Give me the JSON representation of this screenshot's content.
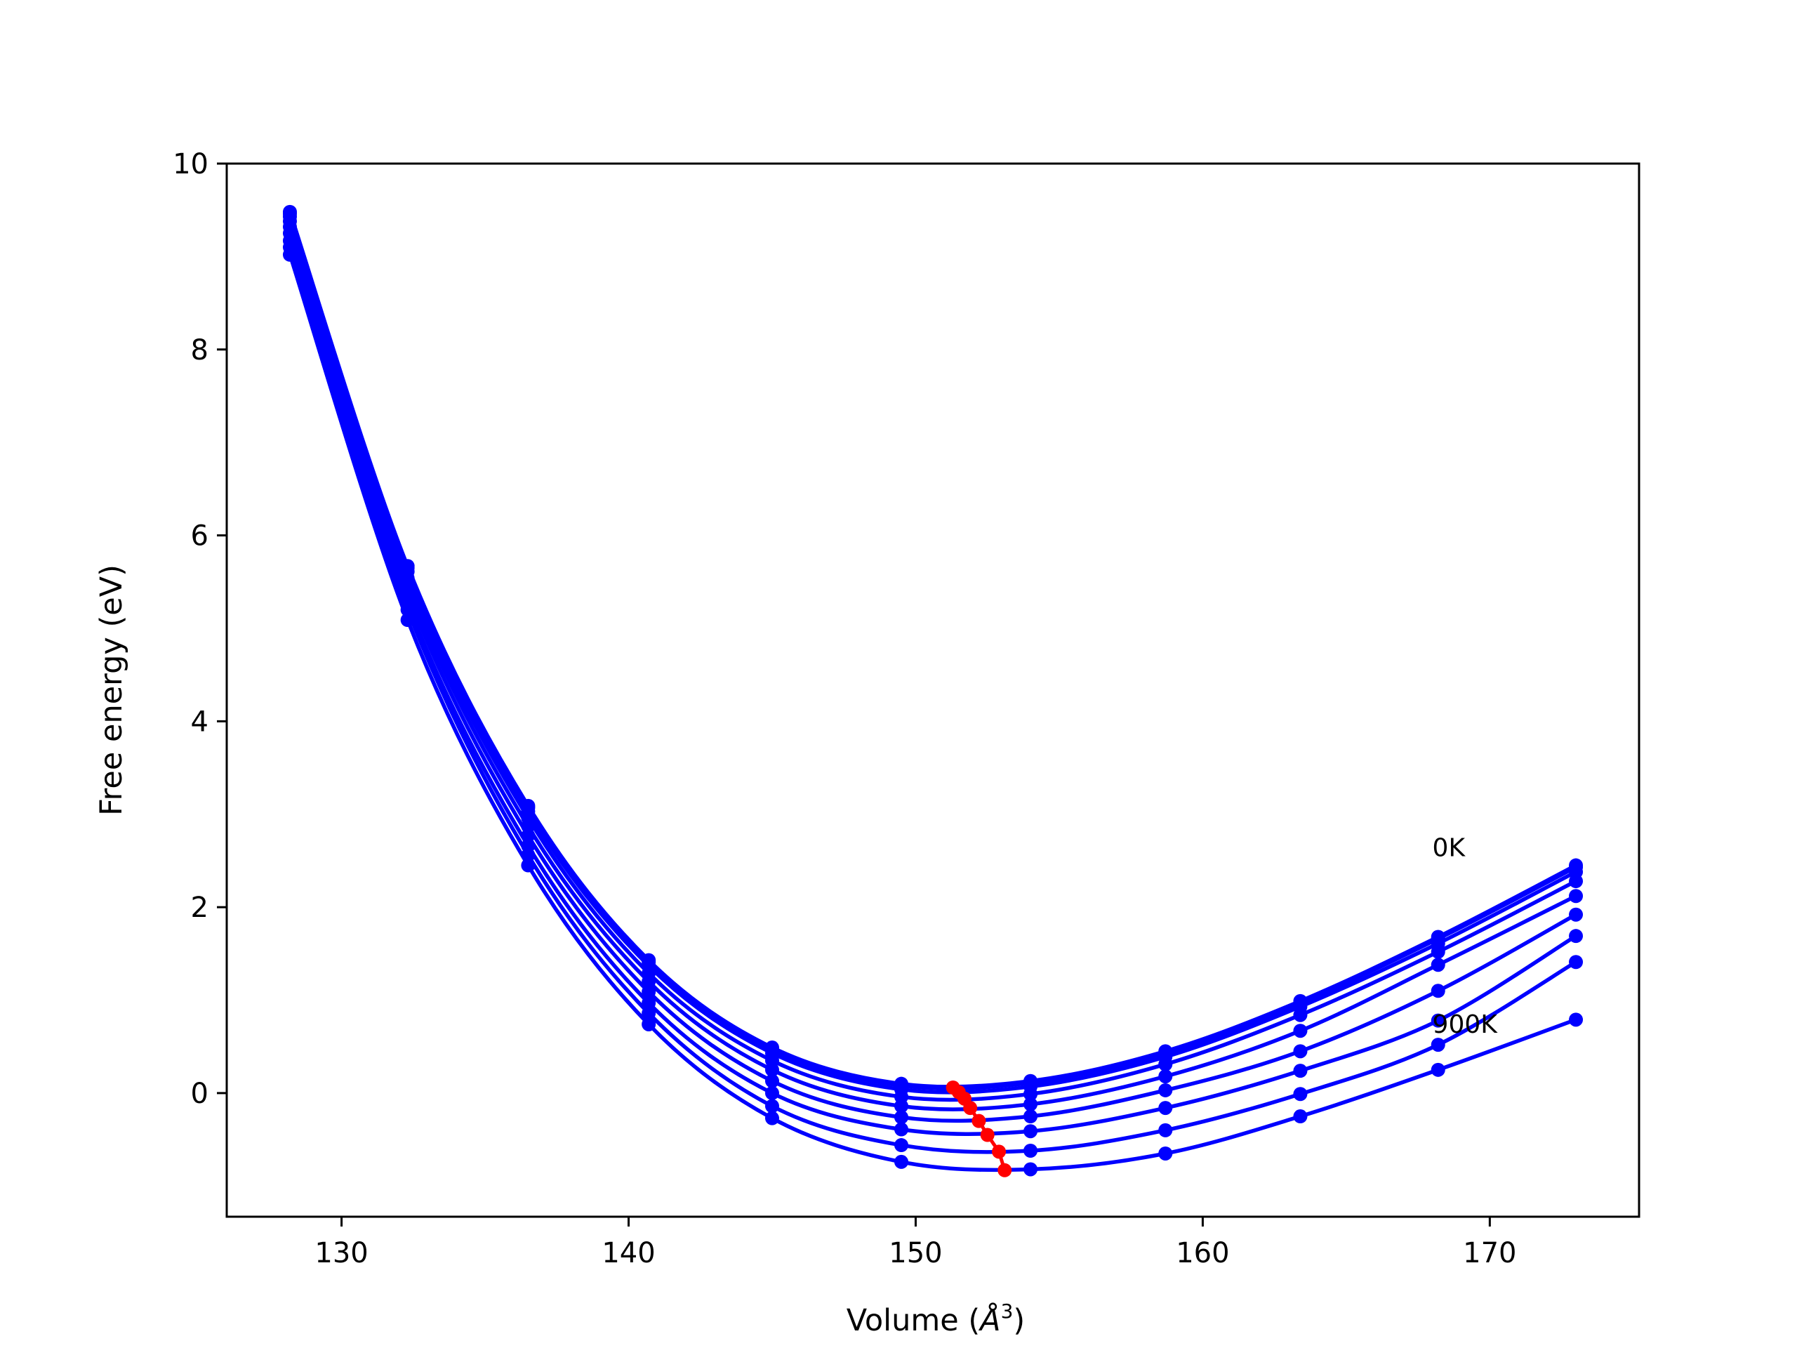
{
  "chart_data": {
    "type": "line",
    "xlabel": "Volume (",
    "xlabel_sym": "Å",
    "xlabel_exp": "3",
    "xlabel_end": ")",
    "ylabel": "Free energy (eV)",
    "xlim": [
      126,
      175.2
    ],
    "ylim": [
      -1.33,
      10
    ],
    "xticks": [
      130,
      140,
      150,
      160,
      170
    ],
    "yticks": [
      0,
      2,
      4,
      6,
      8,
      10
    ],
    "grid": false,
    "line_color": "#0000ff",
    "min_color": "#ff0000",
    "annotations": [
      {
        "text": "0K",
        "x": 168.0,
        "y": 2.55
      },
      {
        "text": "900K",
        "x": 168.0,
        "y": 0.65
      }
    ],
    "x_points": [
      128.2,
      132.3,
      136.5,
      140.7,
      145.0,
      149.5,
      154.0,
      158.7,
      163.4,
      168.2,
      173.0
    ],
    "series": [
      {
        "values": [
          9.48,
          5.67,
          3.09,
          1.43,
          0.49,
          0.1,
          0.13,
          0.45,
          0.99,
          1.68,
          2.45
        ]
      },
      {
        "values": [
          9.46,
          5.65,
          3.07,
          1.41,
          0.47,
          0.08,
          0.11,
          0.43,
          0.97,
          1.66,
          2.43
        ]
      },
      {
        "values": [
          9.43,
          5.61,
          3.03,
          1.37,
          0.43,
          0.04,
          0.07,
          0.39,
          0.93,
          1.61,
          2.38
        ]
      },
      {
        "values": [
          9.38,
          5.54,
          2.96,
          1.29,
          0.35,
          -0.04,
          -0.01,
          0.31,
          0.84,
          1.52,
          2.28
        ]
      },
      {
        "values": [
          9.32,
          5.46,
          2.87,
          1.2,
          0.25,
          -0.14,
          -0.12,
          0.18,
          0.67,
          1.38,
          2.12
        ]
      },
      {
        "values": [
          9.25,
          5.37,
          2.77,
          1.09,
          0.13,
          -0.26,
          -0.25,
          0.03,
          0.45,
          1.1,
          1.92
        ]
      },
      {
        "values": [
          9.17,
          5.27,
          2.66,
          0.97,
          0.0,
          -0.39,
          -0.41,
          -0.16,
          0.24,
          0.78,
          1.69
        ]
      },
      {
        "values": [
          9.1,
          5.2,
          2.56,
          0.86,
          -0.14,
          -0.56,
          -0.62,
          -0.4,
          -0.01,
          0.52,
          1.41
        ]
      },
      {
        "values": [
          9.02,
          5.09,
          2.45,
          0.74,
          -0.27,
          -0.74,
          -0.82,
          -0.65,
          -0.25,
          0.25,
          0.79
        ]
      }
    ],
    "minimum_path": {
      "x": [
        151.3,
        151.5,
        151.7,
        151.9,
        152.2,
        152.5,
        152.9,
        153.1
      ],
      "y": [
        0.06,
        0.01,
        -0.06,
        -0.16,
        -0.3,
        -0.45,
        -0.63,
        -0.83
      ]
    }
  }
}
